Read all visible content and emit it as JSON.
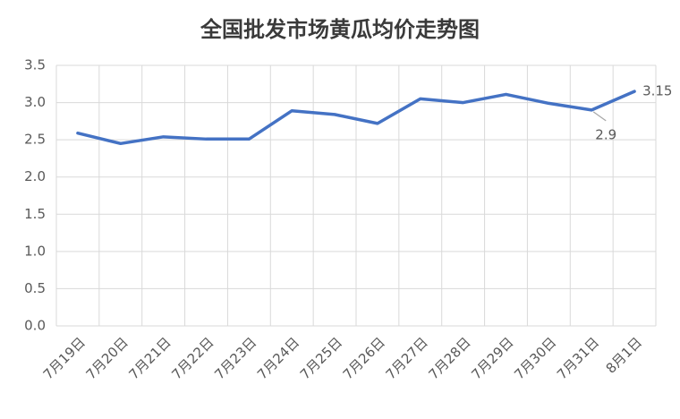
{
  "chart_data": {
    "type": "line",
    "title": "全国批发市场黄瓜均价走势图",
    "categories": [
      "7月19日",
      "7月20日",
      "7月21日",
      "7月22日",
      "7月23日",
      "7月24日",
      "7月25日",
      "7月26日",
      "7月27日",
      "7月28日",
      "7月29日",
      "7月30日",
      "7月31日",
      "8月1日"
    ],
    "values": [
      2.59,
      2.45,
      2.54,
      2.51,
      2.51,
      2.89,
      2.84,
      2.72,
      3.05,
      3.0,
      3.11,
      2.99,
      2.9,
      3.15
    ],
    "value_labels": [
      null,
      null,
      null,
      null,
      null,
      null,
      null,
      null,
      null,
      null,
      null,
      null,
      "2.9",
      "3.15"
    ],
    "color": "#4472c4",
    "ylim": [
      0,
      3.5
    ],
    "yticks": [
      {
        "value": 0,
        "label": "0.0"
      },
      0.5,
      {
        "value": 1,
        "label": "1.0"
      },
      1.5,
      {
        "value": 2,
        "label": "2.0"
      },
      2.5,
      {
        "value": 3,
        "label": "3.0"
      },
      3.5
    ],
    "grid": true
  }
}
